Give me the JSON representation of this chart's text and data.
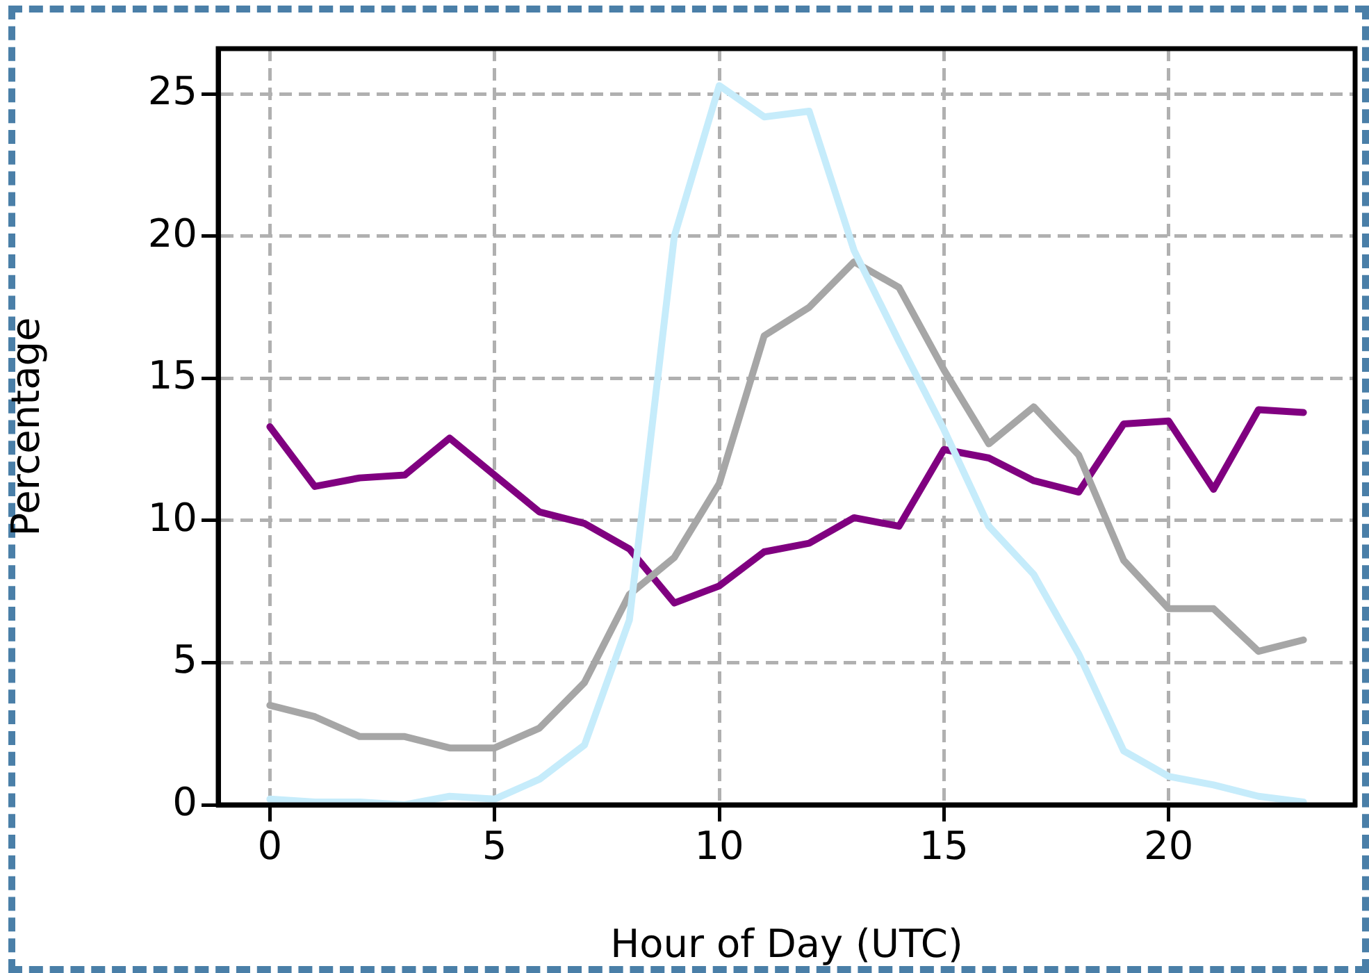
{
  "chart_data": {
    "type": "line",
    "xlabel": "Hour of Day (UTC)",
    "ylabel": "Percentage",
    "x": [
      0,
      1,
      2,
      3,
      4,
      5,
      6,
      7,
      8,
      9,
      10,
      11,
      12,
      13,
      14,
      15,
      16,
      17,
      18,
      19,
      20,
      21,
      22,
      23
    ],
    "series": [
      {
        "color": "#c6ecfb",
        "values": [
          0.2,
          0.1,
          0.1,
          0.0,
          0.3,
          0.2,
          0.9,
          2.1,
          6.5,
          20,
          25.3,
          24.2,
          24.4,
          19.5,
          16.3,
          13.2,
          9.8,
          8.1,
          5.3,
          1.9,
          1.0,
          0.7,
          0.3,
          0.1
        ]
      },
      {
        "color": "#a6a6a6",
        "values": [
          3.5,
          3.1,
          2.4,
          2.4,
          2.0,
          2.0,
          2.7,
          4.3,
          7.4,
          8.7,
          11.3,
          16.5,
          17.5,
          19.1,
          18.2,
          15.3,
          12.7,
          14.0,
          12.3,
          8.6,
          6.9,
          6.9,
          5.4,
          5.8
        ]
      },
      {
        "color": "#800080",
        "values": [
          13.3,
          11.2,
          11.5,
          11.6,
          12.9,
          11.6,
          10.3,
          9.9,
          9.0,
          7.1,
          7.7,
          8.9,
          9.2,
          10.1,
          9.8,
          12.5,
          12.2,
          11.4,
          11.0,
          13.4,
          13.5,
          11.1,
          13.9,
          13.8
        ]
      }
    ],
    "xlim": [
      -1.15,
      24.15
    ],
    "xticks": [
      0,
      5,
      10,
      15,
      20
    ],
    "ylim": [
      0,
      26.6
    ],
    "yticks": [
      0,
      5,
      10,
      15,
      20,
      25
    ],
    "grid": true,
    "line_style": "solid",
    "marker": "none"
  }
}
